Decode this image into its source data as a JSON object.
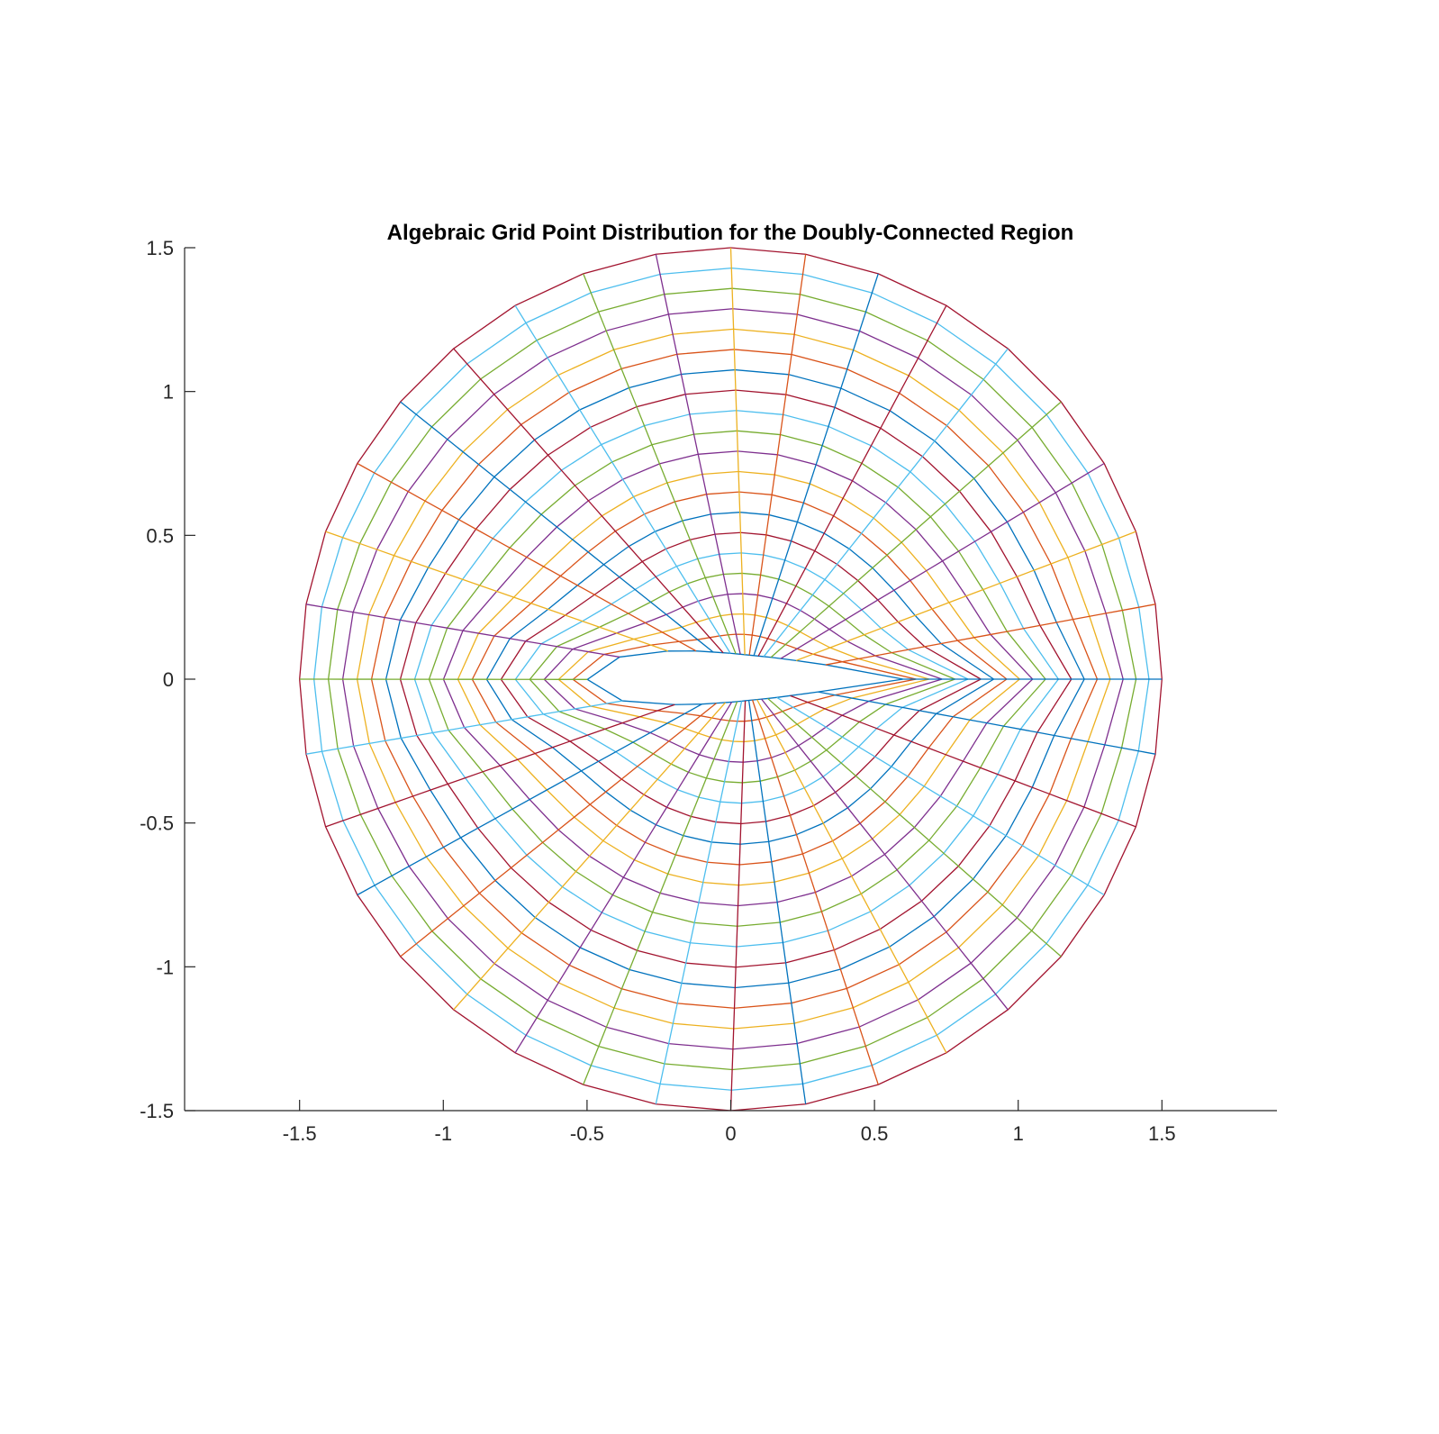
{
  "chart_data": {
    "type": "line",
    "title": "Algebraic Grid Point Distribution for the Doubly-Connected Region",
    "xlabel": "",
    "ylabel": "",
    "xlim": [
      -1.9,
      1.9
    ],
    "ylim": [
      -1.5,
      1.5
    ],
    "x_ticks": [
      -1.5,
      -1,
      -0.5,
      0,
      0.5,
      1,
      1.5
    ],
    "x_tick_labels": [
      "-1.5",
      "-1",
      "-0.5",
      "0",
      "0.5",
      "1",
      "1.5"
    ],
    "y_ticks": [
      -1.5,
      -1,
      -0.5,
      0,
      0.5,
      1,
      1.5
    ],
    "y_tick_labels": [
      "-1.5",
      "-1",
      "-0.5",
      "0",
      "0.5",
      "1",
      "1.5"
    ],
    "grid": false,
    "legend": "none",
    "series_colors": [
      "#0072BD",
      "#D95319",
      "#EDB120",
      "#7E2F8E",
      "#77AC30",
      "#4DBEEE",
      "#A2142F"
    ],
    "grid_description": {
      "inner_boundary": "airfoil",
      "inner_points": [
        [
          0.6,
          0.0
        ],
        [
          0.45,
          0.03
        ],
        [
          0.3,
          0.055
        ],
        [
          0.15,
          0.075
        ],
        [
          0.0,
          0.09
        ],
        [
          -0.15,
          0.1
        ],
        [
          -0.3,
          0.095
        ],
        [
          -0.42,
          0.07
        ],
        [
          -0.5,
          0.0
        ],
        [
          -0.42,
          -0.07
        ],
        [
          -0.3,
          -0.085
        ],
        [
          -0.15,
          -0.09
        ],
        [
          0.0,
          -0.08
        ],
        [
          0.15,
          -0.065
        ],
        [
          0.3,
          -0.045
        ],
        [
          0.45,
          -0.02
        ]
      ],
      "outer_boundary": "circle",
      "outer_radius": 1.5,
      "outer_center": [
        0,
        0
      ],
      "radial_lines": 36,
      "circumferential_lines": 21
    }
  }
}
